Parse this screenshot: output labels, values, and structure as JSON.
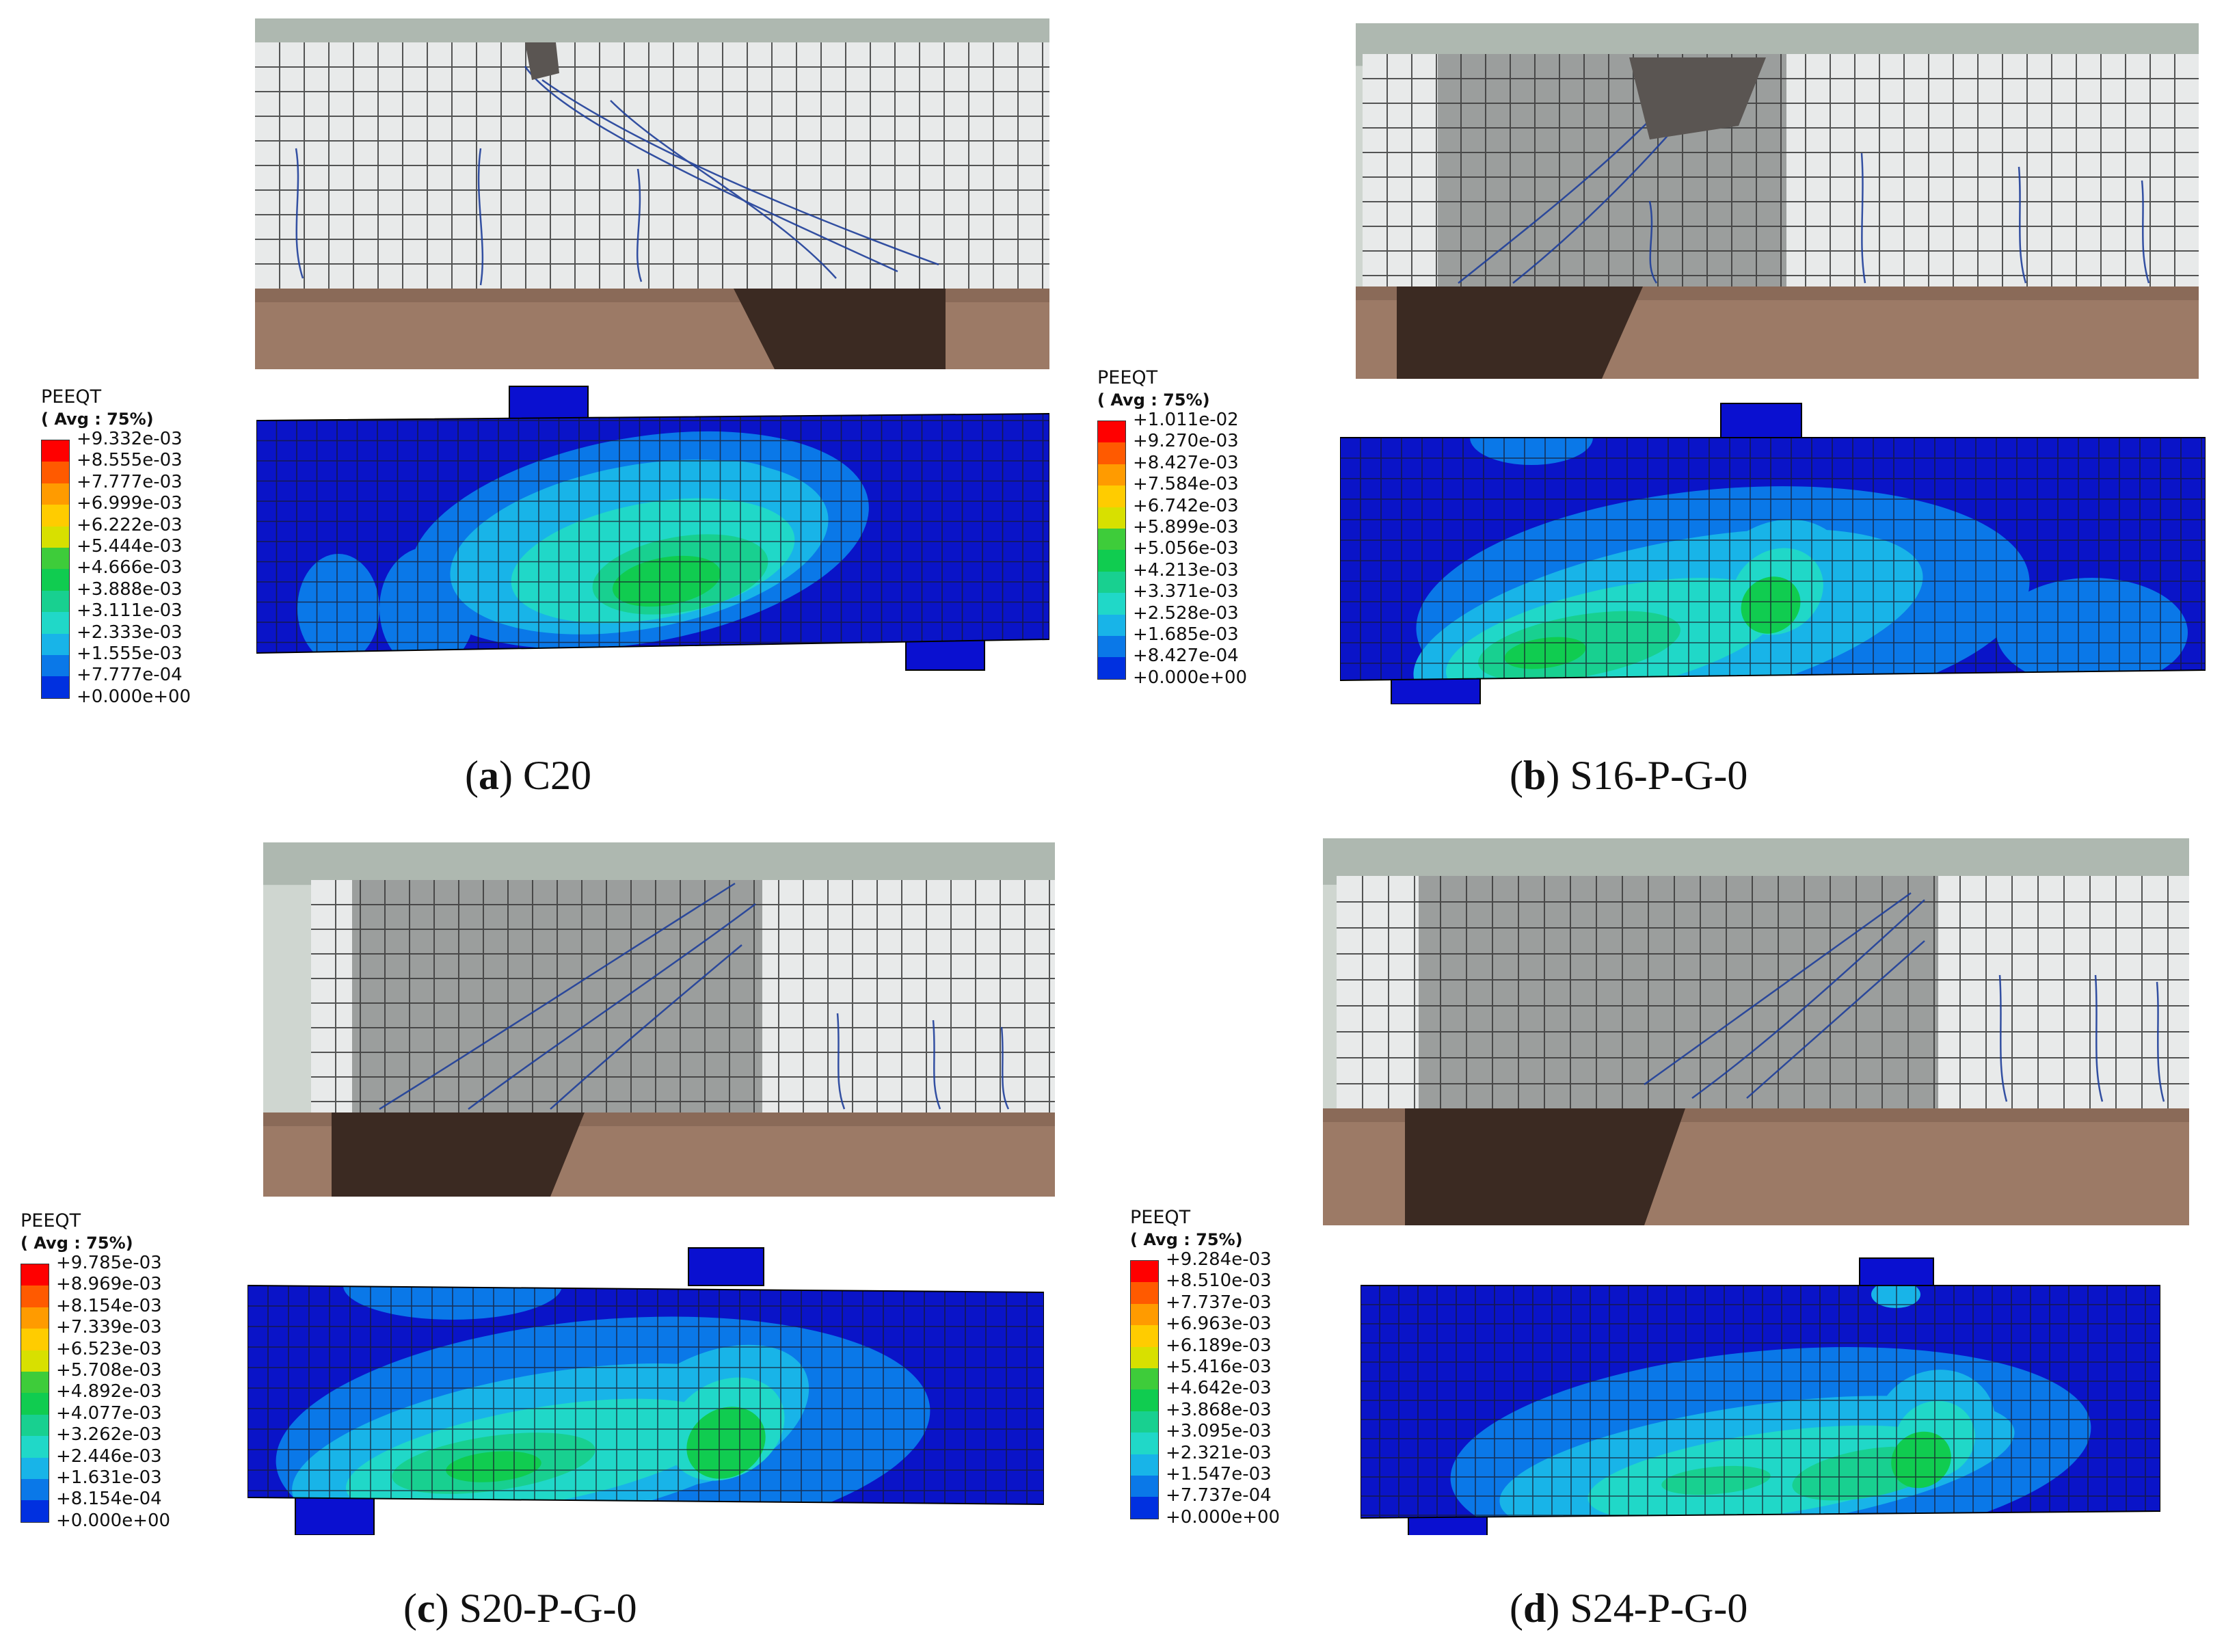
{
  "colors": {
    "scale": [
      "#ff0000",
      "#ff5a00",
      "#ff9b00",
      "#ffcc00",
      "#d8e000",
      "#3ecc3a",
      "#10cc50",
      "#18d090",
      "#20d8c8",
      "#18b4e8",
      "#0a78e8",
      "#0030e0"
    ],
    "photo_white": "#e8eaea",
    "photo_grey": "#9b9e9d",
    "fem_base": "#0a14c8"
  },
  "panels": [
    {
      "id": "a",
      "caption_letter": "a",
      "caption_name": "C20",
      "legend_title": "PEEQT",
      "legend_sub": "( Avg : 75%)",
      "ticks": [
        "+9.332e-03",
        "+8.555e-03",
        "+7.777e-03",
        "+6.999e-03",
        "+6.222e-03",
        "+5.444e-03",
        "+4.666e-03",
        "+3.888e-03",
        "+3.111e-03",
        "+2.333e-03",
        "+1.555e-03",
        "+7.777e-04",
        "+0.000e+00"
      ]
    },
    {
      "id": "b",
      "caption_letter": "b",
      "caption_name": "S16-P-G-0",
      "legend_title": "PEEQT",
      "legend_sub": "( Avg : 75%)",
      "ticks": [
        "+1.011e-02",
        "+9.270e-03",
        "+8.427e-03",
        "+7.584e-03",
        "+6.742e-03",
        "+5.899e-03",
        "+5.056e-03",
        "+4.213e-03",
        "+3.371e-03",
        "+2.528e-03",
        "+1.685e-03",
        "+8.427e-04",
        "+0.000e+00"
      ]
    },
    {
      "id": "c",
      "caption_letter": "c",
      "caption_name": "S20-P-G-0",
      "legend_title": "PEEQT",
      "legend_sub": "( Avg : 75%)",
      "ticks": [
        "+9.785e-03",
        "+8.969e-03",
        "+8.154e-03",
        "+7.339e-03",
        "+6.523e-03",
        "+5.708e-03",
        "+4.892e-03",
        "+4.077e-03",
        "+3.262e-03",
        "+2.446e-03",
        "+1.631e-03",
        "+8.154e-04",
        "+0.000e+00"
      ]
    },
    {
      "id": "d",
      "caption_letter": "d",
      "caption_name": "S24-P-G-0",
      "legend_title": "PEEQT",
      "legend_sub": "( Avg : 75%)\u001a",
      "ticks": [
        "+9.284e-03",
        "+8.510e-03",
        "+7.737e-03",
        "+6.963e-03",
        "+6.189e-03",
        "+5.416e-03",
        "+4.642e-03",
        "+3.868e-03",
        "+3.095e-03",
        "+2.321e-03",
        "+1.547e-03",
        "+7.737e-04",
        "+0.000e+00"
      ]
    }
  ]
}
